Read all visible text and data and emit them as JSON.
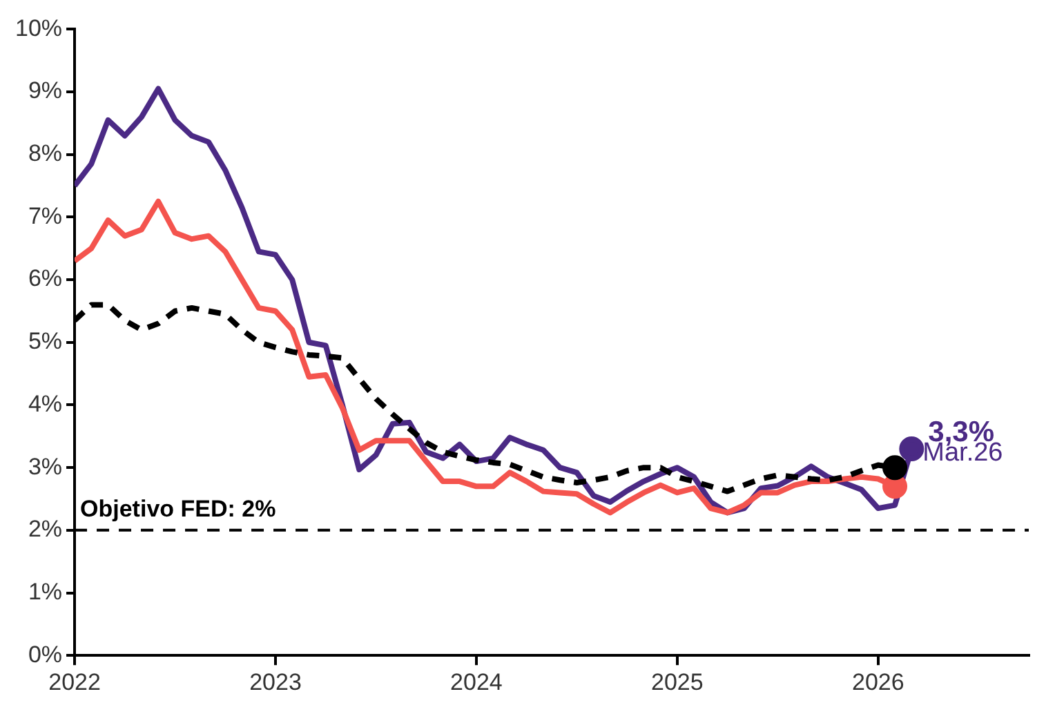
{
  "chart_data": {
    "type": "line",
    "x": [
      "2022-01",
      "2022-02",
      "2022-03",
      "2022-04",
      "2022-05",
      "2022-06",
      "2022-07",
      "2022-08",
      "2022-09",
      "2022-10",
      "2022-11",
      "2022-12",
      "2023-01",
      "2023-02",
      "2023-03",
      "2023-04",
      "2023-05",
      "2023-06",
      "2023-07",
      "2023-08",
      "2023-09",
      "2023-10",
      "2023-11",
      "2023-12",
      "2024-01",
      "2024-02",
      "2024-03",
      "2024-04",
      "2024-05",
      "2024-06",
      "2024-07",
      "2024-08",
      "2024-09",
      "2024-10",
      "2024-11",
      "2024-12",
      "2025-01",
      "2025-02",
      "2025-03",
      "2025-04",
      "2025-05",
      "2025-06",
      "2025-07",
      "2025-08",
      "2025-09",
      "2025-10",
      "2025-11",
      "2025-12",
      "2026-01",
      "2026-02",
      "2026-03"
    ],
    "series": [
      {
        "color": "#4b2a85",
        "line_style": "solid",
        "values": [
          7.5,
          7.85,
          8.55,
          8.3,
          8.6,
          9.05,
          8.55,
          8.3,
          8.2,
          7.75,
          7.15,
          6.45,
          6.4,
          6.0,
          5.0,
          4.95,
          4.0,
          2.97,
          3.2,
          3.7,
          3.72,
          3.25,
          3.15,
          3.37,
          3.1,
          3.15,
          3.48,
          3.37,
          3.28,
          3.0,
          2.92,
          2.55,
          2.45,
          2.63,
          2.78,
          2.9,
          3.0,
          2.85,
          2.45,
          2.28,
          2.35,
          2.67,
          2.71,
          2.85,
          3.02,
          2.85,
          2.75,
          2.65,
          2.35,
          2.4,
          3.3
        ]
      },
      {
        "color": "#f4544e",
        "line_style": "solid",
        "values": [
          6.3,
          6.5,
          6.95,
          6.7,
          6.8,
          7.25,
          6.75,
          6.65,
          6.7,
          6.45,
          6.0,
          5.55,
          5.5,
          5.2,
          4.45,
          4.48,
          3.95,
          3.28,
          3.43,
          3.43,
          3.43,
          3.1,
          2.78,
          2.78,
          2.7,
          2.7,
          2.92,
          2.78,
          2.62,
          2.6,
          2.58,
          2.42,
          2.28,
          2.45,
          2.6,
          2.72,
          2.6,
          2.67,
          2.35,
          2.28,
          2.4,
          2.6,
          2.6,
          2.72,
          2.78,
          2.78,
          2.82,
          2.85,
          2.82,
          2.7,
          null
        ]
      },
      {
        "color": "#000000",
        "line_style": "dashed",
        "values": [
          5.35,
          5.6,
          5.6,
          5.35,
          5.2,
          5.3,
          5.5,
          5.55,
          5.5,
          5.45,
          5.2,
          5.0,
          4.92,
          4.85,
          4.8,
          4.78,
          4.75,
          4.42,
          4.1,
          3.85,
          3.62,
          3.4,
          3.25,
          3.18,
          3.12,
          3.08,
          3.05,
          2.95,
          2.85,
          2.8,
          2.76,
          2.8,
          2.85,
          2.95,
          3.0,
          3.0,
          2.85,
          2.78,
          2.7,
          2.62,
          2.72,
          2.82,
          2.88,
          2.85,
          2.82,
          2.8,
          2.85,
          2.95,
          3.04,
          3.0,
          null
        ]
      }
    ],
    "xlim": [
      "2022-01",
      "2026-10"
    ],
    "xticks": [
      "2022",
      "2023",
      "2024",
      "2025",
      "2026"
    ],
    "ylim": [
      0,
      10
    ],
    "yticks": [
      {
        "value": 0,
        "label": "0%"
      },
      {
        "value": 1,
        "label": "1%"
      },
      {
        "value": 2,
        "label": "2%"
      },
      {
        "value": 3,
        "label": "3%"
      },
      {
        "value": 4,
        "label": "4%"
      },
      {
        "value": 5,
        "label": "5%"
      },
      {
        "value": 6,
        "label": "6%"
      },
      {
        "value": 7,
        "label": "7%"
      },
      {
        "value": 8,
        "label": "8%"
      },
      {
        "value": 9,
        "label": "9%"
      },
      {
        "value": 10,
        "label": "10%"
      }
    ],
    "grid": false,
    "legend": false,
    "ref_lines": [
      {
        "axis": "y",
        "value": 2,
        "label": "Objetivo FED: 2%",
        "color": "#000000",
        "line_style": "dashed"
      }
    ],
    "annotations": [
      {
        "text": "3,3%",
        "x": "2026-03",
        "y": 3.3
      },
      {
        "text": "Mar.26",
        "x": "2026-03",
        "y": 3.3
      }
    ]
  }
}
